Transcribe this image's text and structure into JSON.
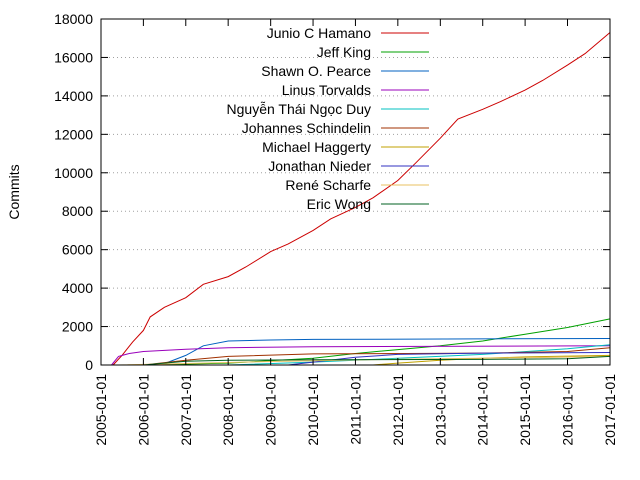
{
  "chart_data": {
    "type": "line",
    "title": "",
    "xlabel": "",
    "ylabel": "Commits",
    "ylim": [
      0,
      18000
    ],
    "yticks": [
      0,
      2000,
      4000,
      6000,
      8000,
      10000,
      12000,
      14000,
      16000,
      18000
    ],
    "xlim": [
      "2005-01-01",
      "2017-01-01"
    ],
    "xticks": [
      "2005-01-01",
      "2006-01-01",
      "2007-01-01",
      "2008-01-01",
      "2009-01-01",
      "2010-01-01",
      "2011-01-01",
      "2012-01-01",
      "2013-01-01",
      "2014-01-01",
      "2015-01-01",
      "2016-01-01",
      "2017-01-01"
    ],
    "grid": "y-only",
    "legend_position": "top-left",
    "series": [
      {
        "name": "Junio C Hamano",
        "color": "#cc0000",
        "points": [
          [
            "2005-04-15",
            0
          ],
          [
            "2005-07-01",
            500
          ],
          [
            "2005-10-01",
            1200
          ],
          [
            "2006-01-01",
            1800
          ],
          [
            "2006-03-01",
            2500
          ],
          [
            "2006-07-01",
            3000
          ],
          [
            "2007-01-01",
            3500
          ],
          [
            "2007-06-01",
            4200
          ],
          [
            "2008-01-01",
            4600
          ],
          [
            "2008-06-01",
            5100
          ],
          [
            "2009-01-01",
            5900
          ],
          [
            "2009-06-01",
            6300
          ],
          [
            "2010-01-01",
            7000
          ],
          [
            "2010-06-01",
            7600
          ],
          [
            "2011-01-01",
            8200
          ],
          [
            "2011-06-01",
            8700
          ],
          [
            "2012-01-01",
            9600
          ],
          [
            "2012-06-01",
            10500
          ],
          [
            "2013-01-01",
            11800
          ],
          [
            "2013-06-01",
            12800
          ],
          [
            "2014-01-01",
            13300
          ],
          [
            "2014-06-01",
            13700
          ],
          [
            "2015-01-01",
            14300
          ],
          [
            "2015-06-01",
            14800
          ],
          [
            "2016-01-01",
            15600
          ],
          [
            "2016-06-01",
            16200
          ],
          [
            "2017-01-01",
            17300
          ]
        ]
      },
      {
        "name": "Jeff King",
        "color": "#00a000",
        "points": [
          [
            "2006-01-01",
            0
          ],
          [
            "2008-01-01",
            100
          ],
          [
            "2010-01-01",
            350
          ],
          [
            "2011-01-01",
            600
          ],
          [
            "2012-01-01",
            800
          ],
          [
            "2013-01-01",
            1000
          ],
          [
            "2014-01-01",
            1250
          ],
          [
            "2015-01-01",
            1600
          ],
          [
            "2016-01-01",
            1950
          ],
          [
            "2017-01-01",
            2400
          ]
        ]
      },
      {
        "name": "Shawn O. Pearce",
        "color": "#0060c0",
        "points": [
          [
            "2006-06-01",
            0
          ],
          [
            "2007-01-01",
            500
          ],
          [
            "2007-06-01",
            1000
          ],
          [
            "2008-01-01",
            1250
          ],
          [
            "2009-01-01",
            1300
          ],
          [
            "2010-01-01",
            1330
          ],
          [
            "2017-01-01",
            1380
          ]
        ]
      },
      {
        "name": "Linus Torvalds",
        "color": "#9900bb",
        "points": [
          [
            "2005-04-01",
            0
          ],
          [
            "2005-06-01",
            450
          ],
          [
            "2005-09-01",
            600
          ],
          [
            "2006-01-01",
            700
          ],
          [
            "2007-01-01",
            820
          ],
          [
            "2008-01-01",
            900
          ],
          [
            "2010-01-01",
            950
          ],
          [
            "2017-01-01",
            1000
          ]
        ]
      },
      {
        "name": "Nguyễn Thái Ngọc Duy",
        "color": "#00c0c0",
        "points": [
          [
            "2008-01-01",
            0
          ],
          [
            "2010-01-01",
            150
          ],
          [
            "2012-01-01",
            350
          ],
          [
            "2014-01-01",
            550
          ],
          [
            "2016-01-01",
            850
          ],
          [
            "2017-01-01",
            1050
          ]
        ]
      },
      {
        "name": "Johannes Schindelin",
        "color": "#a03000",
        "points": [
          [
            "2006-01-01",
            0
          ],
          [
            "2007-01-01",
            250
          ],
          [
            "2008-01-01",
            450
          ],
          [
            "2010-01-01",
            580
          ],
          [
            "2014-01-01",
            620
          ],
          [
            "2016-01-01",
            700
          ],
          [
            "2017-01-01",
            900
          ]
        ]
      },
      {
        "name": "Michael Haggerty",
        "color": "#c0a000",
        "points": [
          [
            "2011-06-01",
            0
          ],
          [
            "2012-01-01",
            100
          ],
          [
            "2013-01-01",
            250
          ],
          [
            "2014-01-01",
            350
          ],
          [
            "2015-01-01",
            420
          ],
          [
            "2017-01-01",
            500
          ]
        ]
      },
      {
        "name": "Jonathan Nieder",
        "color": "#3030c0",
        "points": [
          [
            "2009-06-01",
            0
          ],
          [
            "2010-01-01",
            150
          ],
          [
            "2011-01-01",
            400
          ],
          [
            "2012-01-01",
            550
          ],
          [
            "2014-01-01",
            620
          ],
          [
            "2017-01-01",
            650
          ]
        ]
      },
      {
        "name": "René Scharfe",
        "color": "#e8c060",
        "points": [
          [
            "2005-06-01",
            0
          ],
          [
            "2007-01-01",
            80
          ],
          [
            "2009-01-01",
            180
          ],
          [
            "2012-01-01",
            300
          ],
          [
            "2015-01-01",
            380
          ],
          [
            "2017-01-01",
            450
          ]
        ]
      },
      {
        "name": "Eric Wong",
        "color": "#006020",
        "points": [
          [
            "2006-01-01",
            0
          ],
          [
            "2007-01-01",
            200
          ],
          [
            "2008-01-01",
            250
          ],
          [
            "2010-01-01",
            270
          ],
          [
            "2014-01-01",
            290
          ],
          [
            "2016-01-01",
            330
          ],
          [
            "2017-01-01",
            450
          ]
        ]
      }
    ]
  }
}
